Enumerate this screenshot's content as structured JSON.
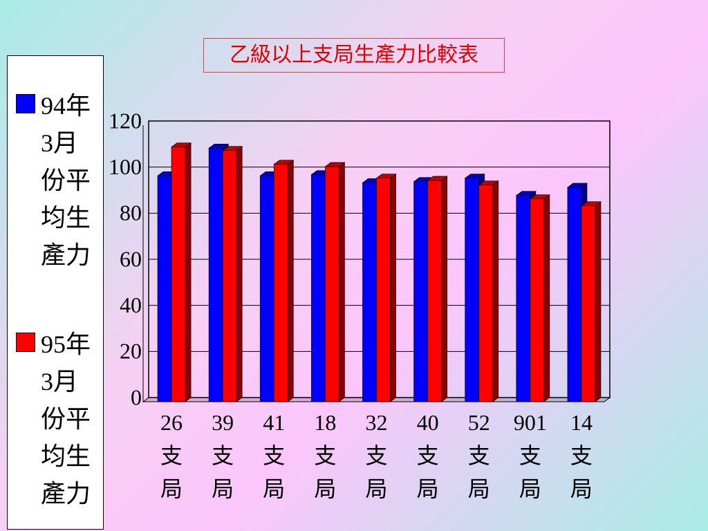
{
  "chart_data": {
    "type": "bar",
    "title": "乙級以上支局生產力比較表",
    "categories": [
      "26支局",
      "39支局",
      "41支局",
      "18支局",
      "32支局",
      "40支局",
      "52支局",
      "901支局",
      "14支局"
    ],
    "series": [
      {
        "name": "94年3月份平均生產力",
        "color": "#0000ff",
        "values": [
          98,
          110,
          98,
          98.5,
          95,
          95.5,
          97,
          89.5,
          93
        ]
      },
      {
        "name": "95年3月份平均生產力",
        "color": "#ff0000",
        "values": [
          110.5,
          109,
          103,
          102,
          97,
          96,
          94,
          88,
          85
        ]
      }
    ],
    "ylim": [
      0,
      120
    ],
    "yticks": [
      0,
      20,
      40,
      60,
      80,
      100,
      120
    ],
    "grid": true
  }
}
